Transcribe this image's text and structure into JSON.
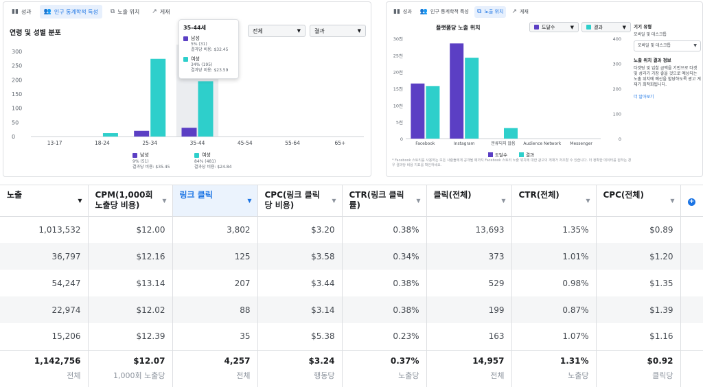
{
  "left": {
    "tabs": [
      {
        "label": "성과",
        "icon": "bar-chart-icon",
        "active": false
      },
      {
        "label": "인구 통계학적 특성",
        "icon": "people-icon",
        "active": true
      },
      {
        "label": "노출 위치",
        "icon": "placement-icon",
        "active": false
      },
      {
        "label": "게재",
        "icon": "trend-icon",
        "active": false
      }
    ],
    "title": "연령 및 성별 분포",
    "dropdown1": "전체",
    "dropdown2": "결과",
    "tooltip": {
      "title": "35-44세",
      "male_label": "남성",
      "male_line1": "5% (31)",
      "male_line2": "결과당 비용: $32.45",
      "female_label": "여성",
      "female_line1": "34% (195)",
      "female_line2": "결과당 비용: $23.59"
    },
    "legend": {
      "male_label": "남성",
      "male_line1": "9% (51)",
      "male_line2": "결과당 비용: $35.45",
      "female_label": "여성",
      "female_line1": "84% (481)",
      "female_line2": "결과당 비용: $24.84"
    }
  },
  "right": {
    "tabs": [
      {
        "label": "성과",
        "icon": "bar-chart-icon",
        "active": false
      },
      {
        "label": "인구 통계학적 특성",
        "icon": "people-icon",
        "active": false
      },
      {
        "label": "노출 위치",
        "icon": "placement-icon",
        "active": true
      },
      {
        "label": "게재",
        "icon": "trend-icon",
        "active": false
      }
    ],
    "title": "플랫폼당 노출 위치",
    "dropdown1": "도달수",
    "dropdown2": "결과",
    "side": {
      "device_heading": "기기 유형",
      "device_label": "모바일 및 데스크톱",
      "device_select": "모바일 및 데스크톱",
      "info_heading": "노출 위치 결과 정보",
      "info_text": "타겟팅 및 입찰 금액을 기반으로 타겟 및 성과가 가장 좋을 것으로 예상되는 노출 위치에 예산을 할당하도록 광고 게재가 최적화됩니다.",
      "link": "더 알아보기"
    },
    "footnote": "* Facebook 스토리를 사용하는 모든 사람들에게 공개될 때까지 Facebook 스토리 노출 위치에 대한 광고의 게재가 저조할 수 있습니다. 더 정확한 데이터를 원하는 경우 결과당 비용 지표를 확인하세요.",
    "legend": {
      "reach": "도달수",
      "result": "결과"
    }
  },
  "colors": {
    "male": "#5b3fc4",
    "female": "#2ecfcb",
    "accent": "#1b74e4"
  },
  "chart_data": [
    {
      "type": "bar",
      "title": "연령 및 성별 분포",
      "categories": [
        "13-17",
        "18-24",
        "25-34",
        "35-44",
        "45-54",
        "55-64",
        "65+"
      ],
      "series": [
        {
          "name": "남성",
          "values": [
            0,
            0,
            20,
            31,
            0,
            0,
            0
          ]
        },
        {
          "name": "여성",
          "values": [
            0,
            12,
            274,
            195,
            0,
            0,
            0
          ]
        }
      ],
      "ylim": [
        0,
        300
      ],
      "yticks": [
        "0",
        "50",
        "100",
        "150",
        "200",
        "250",
        "300"
      ],
      "grid": false,
      "legend": "bottom"
    },
    {
      "type": "bar",
      "title": "플랫폼당 노출 위치",
      "categories": [
        "Facebook",
        "Instagram",
        "분류되지 않음",
        "Audience Network",
        "Messenger"
      ],
      "series": [
        {
          "name": "도달수",
          "values": [
            16.5,
            28.5,
            0,
            0,
            0
          ]
        },
        {
          "name": "결과",
          "values": [
            210,
            323,
            42,
            0,
            0
          ]
        }
      ],
      "ylim_left": [
        0,
        30
      ],
      "ylim_right": [
        0,
        400
      ],
      "yticks_left": [
        "0",
        "5천",
        "10천",
        "15천",
        "20천",
        "25천",
        "30천"
      ],
      "yticks_right": [
        "0",
        "100",
        "200",
        "300",
        "400"
      ],
      "grid": false,
      "legend": "bottom"
    }
  ],
  "table": {
    "columns": [
      {
        "label": "노출"
      },
      {
        "label": "CPM(1,000회 노출당 비용)"
      },
      {
        "label": "링크 클릭"
      },
      {
        "label": "CPC(링크 클릭당 비용)"
      },
      {
        "label": "CTR(링크 클릭률)"
      },
      {
        "label": "클릭(전체)"
      },
      {
        "label": "CTR(전체)"
      },
      {
        "label": "CPC(전체)"
      }
    ],
    "rows": [
      [
        "1,013,532",
        "$12.00",
        "3,802",
        "$3.20",
        "0.38%",
        "13,693",
        "1.35%",
        "$0.89"
      ],
      [
        "36,797",
        "$12.16",
        "125",
        "$3.58",
        "0.34%",
        "373",
        "1.01%",
        "$1.20"
      ],
      [
        "54,247",
        "$13.14",
        "207",
        "$3.44",
        "0.38%",
        "529",
        "0.98%",
        "$1.35"
      ],
      [
        "22,974",
        "$12.02",
        "88",
        "$3.14",
        "0.38%",
        "199",
        "0.87%",
        "$1.39"
      ],
      [
        "15,206",
        "$12.39",
        "35",
        "$5.38",
        "0.23%",
        "163",
        "1.07%",
        "$1.16"
      ]
    ],
    "totals": [
      {
        "value": "1,142,756",
        "label": "전체"
      },
      {
        "value": "$12.07",
        "label": "1,000회 노출당"
      },
      {
        "value": "4,257",
        "label": "전체"
      },
      {
        "value": "$3.24",
        "label": "행동당"
      },
      {
        "value": "0.37%",
        "label": "노출당"
      },
      {
        "value": "14,957",
        "label": "전체"
      },
      {
        "value": "1.31%",
        "label": "노출당"
      },
      {
        "value": "$0.92",
        "label": "클릭당"
      }
    ],
    "add_column_icon": "plus-circle-icon"
  }
}
